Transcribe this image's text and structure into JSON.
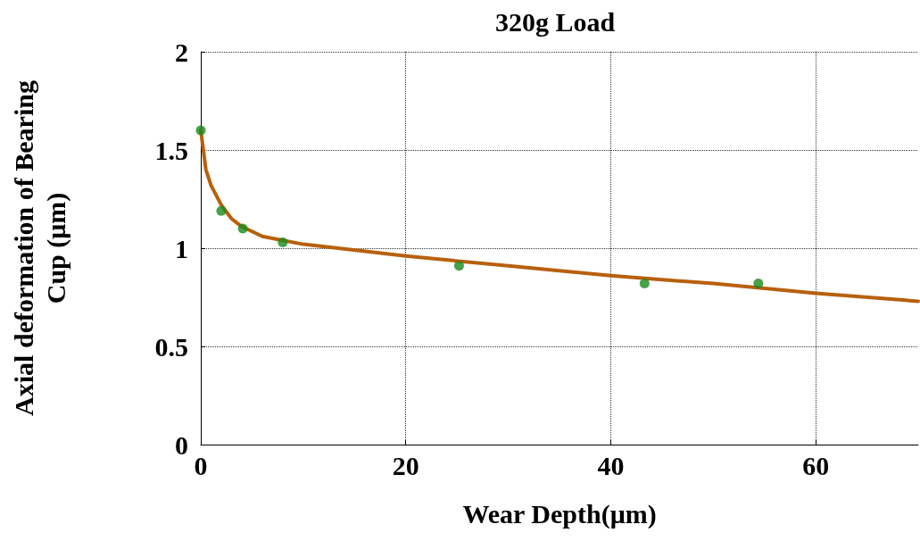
{
  "chart_data": {
    "type": "scatter",
    "title": "320g Load",
    "xlabel": "Wear Depth(μm)",
    "ylabel": "Axial deformation of Bearing\nCup (μm)",
    "xlim": [
      0,
      70
    ],
    "xticks": [
      0,
      20,
      40,
      60
    ],
    "ylim": [
      0,
      2
    ],
    "yticks": [
      0,
      0.5,
      1,
      1.5,
      2
    ],
    "grid": true,
    "series": [
      {
        "type": "line",
        "color": "#b8600c",
        "marker": "none",
        "x": [
          0,
          0.5,
          1,
          2,
          3,
          4,
          6,
          8,
          10,
          20,
          30,
          40,
          50,
          60,
          70
        ],
        "values": [
          1.6,
          1.4,
          1.32,
          1.22,
          1.15,
          1.11,
          1.06,
          1.04,
          1.02,
          0.96,
          0.91,
          0.86,
          0.82,
          0.77,
          0.73
        ]
      },
      {
        "color": "#1a8a1a",
        "marker": "circle",
        "x": [
          0,
          2,
          4.1,
          8,
          25.2,
          43.3,
          54.4
        ],
        "values": [
          1.6,
          1.19,
          1.1,
          1.03,
          0.91,
          0.82,
          0.82
        ]
      }
    ]
  }
}
